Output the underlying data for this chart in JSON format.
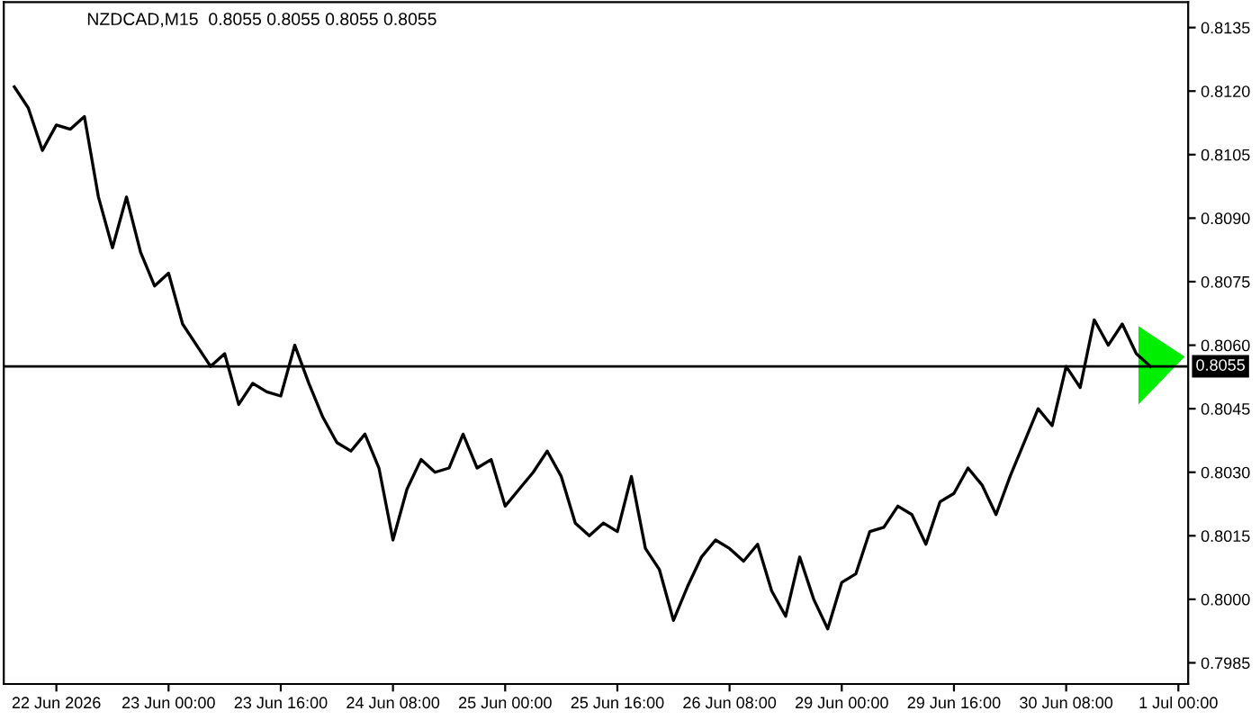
{
  "chart_data": {
    "type": "line",
    "title": "NZDCAD,M15  0.8055 0.8055 0.8055 0.8055",
    "categories": [
      null,
      null,
      null,
      "22 Jun 2026",
      null,
      null,
      null,
      null,
      null,
      null,
      null,
      "23 Jun 00:00",
      null,
      null,
      null,
      null,
      null,
      null,
      null,
      "23 Jun 16:00",
      null,
      null,
      null,
      null,
      null,
      null,
      null,
      "24 Jun 08:00",
      null,
      null,
      null,
      null,
      null,
      null,
      null,
      "25 Jun 00:00",
      null,
      null,
      null,
      null,
      null,
      null,
      null,
      "25 Jun 16:00",
      null,
      null,
      null,
      null,
      null,
      null,
      null,
      "26 Jun 08:00",
      null,
      null,
      null,
      null,
      null,
      null,
      null,
      "29 Jun 00:00",
      null,
      null,
      null,
      null,
      null,
      null,
      null,
      "29 Jun 16:00",
      null,
      null,
      null,
      null,
      null,
      null,
      null,
      "30 Jun 08:00",
      null,
      null,
      null,
      null,
      null,
      null,
      null,
      "1 Jul 00:00"
    ],
    "series": [
      {
        "color": "#000000",
        "values": [
          0.8121,
          0.8116,
          0.8106,
          0.8112,
          0.8111,
          0.8114,
          0.8095,
          0.8083,
          0.8095,
          0.8082,
          0.8074,
          0.8077,
          0.8065,
          0.806,
          0.8055,
          0.8058,
          0.8046,
          0.8051,
          0.8049,
          0.8048,
          0.806,
          0.8051,
          0.8043,
          0.8037,
          0.8035,
          0.8039,
          0.8031,
          0.8014,
          0.8026,
          0.8033,
          0.803,
          0.8031,
          0.8039,
          0.8031,
          0.8033,
          0.8022,
          0.8026,
          0.803,
          0.8035,
          0.8029,
          0.8018,
          0.8015,
          0.8018,
          0.8016,
          0.8029,
          0.8012,
          0.8007,
          0.7995,
          0.8003,
          0.801,
          0.8014,
          0.8012,
          0.8009,
          0.8013,
          0.8002,
          0.7996,
          0.801,
          0.8,
          0.7993,
          0.8004,
          0.8006,
          0.8016,
          0.8017,
          0.8022,
          0.802,
          0.8013,
          0.8023,
          0.8025,
          0.8031,
          0.8027,
          0.802,
          0.8029,
          0.8037,
          0.8045,
          0.8041,
          0.8055,
          0.805,
          0.8066,
          0.806,
          0.8065,
          0.8058,
          0.8055,
          null,
          null
        ]
      }
    ],
    "ylim": [
      0.798,
      0.8141
    ],
    "yticks": [
      {
        "value": 0.7985,
        "label": "0.7985"
      },
      {
        "value": 0.8,
        "label": "0.8000"
      },
      {
        "value": 0.8015,
        "label": "0.8015"
      },
      {
        "value": 0.803,
        "label": "0.8030"
      },
      {
        "value": 0.8045,
        "label": "0.8045"
      },
      {
        "value": 0.806,
        "label": "0.8060"
      },
      {
        "value": 0.8075,
        "label": "0.8075"
      },
      {
        "value": 0.809,
        "label": "0.8090"
      },
      {
        "value": 0.8105,
        "label": "0.8105"
      },
      {
        "value": 0.812,
        "label": "0.8120"
      },
      {
        "value": 0.8135,
        "label": "0.8135"
      }
    ],
    "ref_lines": [
      {
        "axis": "y",
        "value": 0.8055,
        "label": "0.8055",
        "color": "#000000"
      }
    ],
    "grid": false,
    "legend": false,
    "marker": "none",
    "line_style": "solid"
  }
}
